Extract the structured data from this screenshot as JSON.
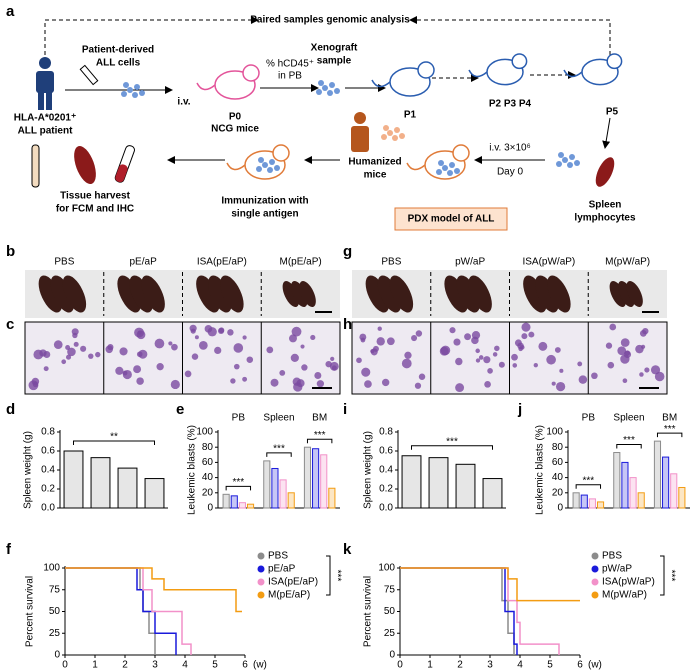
{
  "panel_labels": {
    "a": "a",
    "b": "b",
    "c": "c",
    "d": "d",
    "e": "e",
    "f": "f",
    "g": "g",
    "h": "h",
    "i": "i",
    "j": "j",
    "k": "k"
  },
  "diagram": {
    "top": "Paired samples genomic analysis",
    "patient": [
      "HLA-A*0201⁺",
      "ALL patient"
    ],
    "cells": [
      "Patient-derived",
      "ALL cells"
    ],
    "iv": "i.v.",
    "p0": [
      "P0",
      "NCG mice"
    ],
    "hcd": [
      "% hCD45⁺",
      "in PB"
    ],
    "xeno": [
      "Xenograft",
      "sample"
    ],
    "p1": "P1",
    "p234": "P2  P3  P4",
    "p5": "P5",
    "spleen": [
      "Spleen",
      "lymphocytes"
    ],
    "inject": [
      "i.v. 3×10⁶",
      "Day 0"
    ],
    "humanized": [
      "Humanized",
      "mice"
    ],
    "pdx": "PDX model of ALL",
    "immun": [
      "Immunization with",
      "single antigen"
    ],
    "harvest": [
      "Tissue harvest",
      "for FCM and IHC"
    ]
  },
  "images": {
    "b": [
      "PBS",
      "pE/aP",
      "ISA(pE/aP)",
      "M(pE/aP)"
    ],
    "g": [
      "PBS",
      "pW/aP",
      "ISA(pW/aP)",
      "M(pW/aP)"
    ]
  },
  "chart_data": [
    {
      "type": "bar",
      "ylabel": "Spleen weight (g)",
      "values": [
        0.6,
        0.53,
        0.42,
        0.31
      ],
      "color": "#e6e6e6",
      "ylim": [
        0,
        0.8
      ],
      "yticks": [
        {
          "value": 0,
          "label": "0.0"
        },
        0.2,
        0.4,
        0.6,
        0.8
      ],
      "annotations": [
        "**"
      ]
    },
    {
      "type": "bar",
      "ylabel": "Leukemic blasts (%)",
      "categories": [
        "PB",
        "Spleen",
        "BM"
      ],
      "series": [
        {
          "color": "#8c8c8c",
          "values": [
            18,
            62,
            80
          ]
        },
        {
          "color": "#1a1adb",
          "values": [
            16,
            52,
            78
          ]
        },
        {
          "color": "#f291c9",
          "values": [
            7,
            37,
            70
          ]
        },
        {
          "color": "#f39c12",
          "values": [
            5,
            20,
            26
          ]
        }
      ],
      "ylim": [
        0,
        100
      ],
      "yticks": [
        0,
        20,
        40,
        60,
        80,
        100
      ],
      "annotations": [
        "***",
        "***",
        "***"
      ]
    },
    {
      "type": "line",
      "ylabel": "Percent survival",
      "xlabel": "(w)",
      "xlim": [
        0,
        6
      ],
      "xticks": [
        0,
        1,
        2,
        3,
        4,
        5,
        6
      ],
      "ylim": [
        0,
        100
      ],
      "yticks": [
        0,
        25,
        50,
        75,
        100
      ],
      "annotations": [
        "***"
      ],
      "series": [
        {
          "name": "PBS",
          "color": "#8c8c8c",
          "x": [
            0,
            2.5,
            2.5,
            2.6,
            2.6,
            2.8,
            2.8,
            3.0,
            3.0
          ],
          "values": [
            100,
            100,
            75,
            75,
            50,
            50,
            25,
            25,
            0
          ]
        },
        {
          "name": "pE/aP",
          "color": "#1a1adb",
          "x": [
            0,
            2.4,
            2.4,
            2.6,
            2.6,
            3.0,
            3.0,
            3.7,
            3.7
          ],
          "values": [
            100,
            100,
            75,
            75,
            50,
            50,
            25,
            25,
            0
          ]
        },
        {
          "name": "ISA(pE/aP)",
          "color": "#f291c9",
          "x": [
            0,
            2.6,
            2.6,
            2.9,
            2.9,
            3.9,
            3.9,
            4.2,
            4.2
          ],
          "values": [
            100,
            100,
            75,
            75,
            50,
            50,
            12.5,
            12.5,
            0
          ]
        },
        {
          "name": "M(pE/aP)",
          "color": "#f39c12",
          "x": [
            0,
            2.9,
            2.9,
            3.3,
            3.3,
            5.7,
            5.7,
            5.9
          ],
          "values": [
            100,
            100,
            87.5,
            87.5,
            75,
            75,
            50,
            50
          ]
        }
      ]
    },
    {
      "type": "bar",
      "ylabel": "Spleen weight (g)",
      "values": [
        0.55,
        0.53,
        0.46,
        0.31
      ],
      "color": "#e6e6e6",
      "ylim": [
        0,
        0.8
      ],
      "yticks": [
        {
          "value": 0,
          "label": "0.0"
        },
        0.2,
        0.4,
        0.6,
        0.8
      ],
      "annotations": [
        "***"
      ]
    },
    {
      "type": "bar",
      "ylabel": "Leukemic blasts (%)",
      "categories": [
        "PB",
        "Spleen",
        "BM"
      ],
      "series": [
        {
          "color": "#8c8c8c",
          "values": [
            20,
            73,
            88
          ]
        },
        {
          "color": "#1a1adb",
          "values": [
            17,
            60,
            67
          ]
        },
        {
          "color": "#f291c9",
          "values": [
            12,
            40,
            45
          ]
        },
        {
          "color": "#f39c12",
          "values": [
            8,
            20,
            27
          ]
        }
      ],
      "ylim": [
        0,
        100
      ],
      "yticks": [
        0,
        20,
        40,
        60,
        80,
        100
      ],
      "annotations": [
        "***",
        "***",
        "***"
      ]
    },
    {
      "type": "line",
      "ylabel": "Percent survival",
      "xlabel": "(w)",
      "xlim": [
        0,
        6
      ],
      "xticks": [
        0,
        1,
        2,
        3,
        4,
        5,
        6
      ],
      "ylim": [
        0,
        100
      ],
      "yticks": [
        0,
        25,
        50,
        75,
        100
      ],
      "annotations": [
        "***"
      ],
      "series": [
        {
          "name": "PBS",
          "color": "#8c8c8c",
          "x": [
            0,
            3.4,
            3.4,
            3.6,
            3.6,
            3.8,
            3.8
          ],
          "values": [
            100,
            100,
            62.5,
            62.5,
            25,
            25,
            0
          ]
        },
        {
          "name": "pW/aP",
          "color": "#1a1adb",
          "x": [
            0,
            3.5,
            3.5,
            3.8,
            3.8,
            3.9,
            3.9
          ],
          "values": [
            100,
            100,
            50,
            50,
            12.5,
            12.5,
            0
          ]
        },
        {
          "name": "ISA(pW/aP)",
          "color": "#f291c9",
          "x": [
            0,
            3.6,
            3.6,
            3.9,
            3.9,
            4.0,
            4.0,
            5.3,
            5.3
          ],
          "values": [
            100,
            100,
            62.5,
            62.5,
            37.5,
            37.5,
            12.5,
            12.5,
            0
          ]
        },
        {
          "name": "M(pW/aP)",
          "color": "#f39c12",
          "x": [
            0,
            3.6,
            3.6,
            3.9,
            3.9,
            6.0
          ],
          "values": [
            100,
            100,
            87.5,
            87.5,
            62.5,
            62.5
          ]
        }
      ]
    }
  ]
}
